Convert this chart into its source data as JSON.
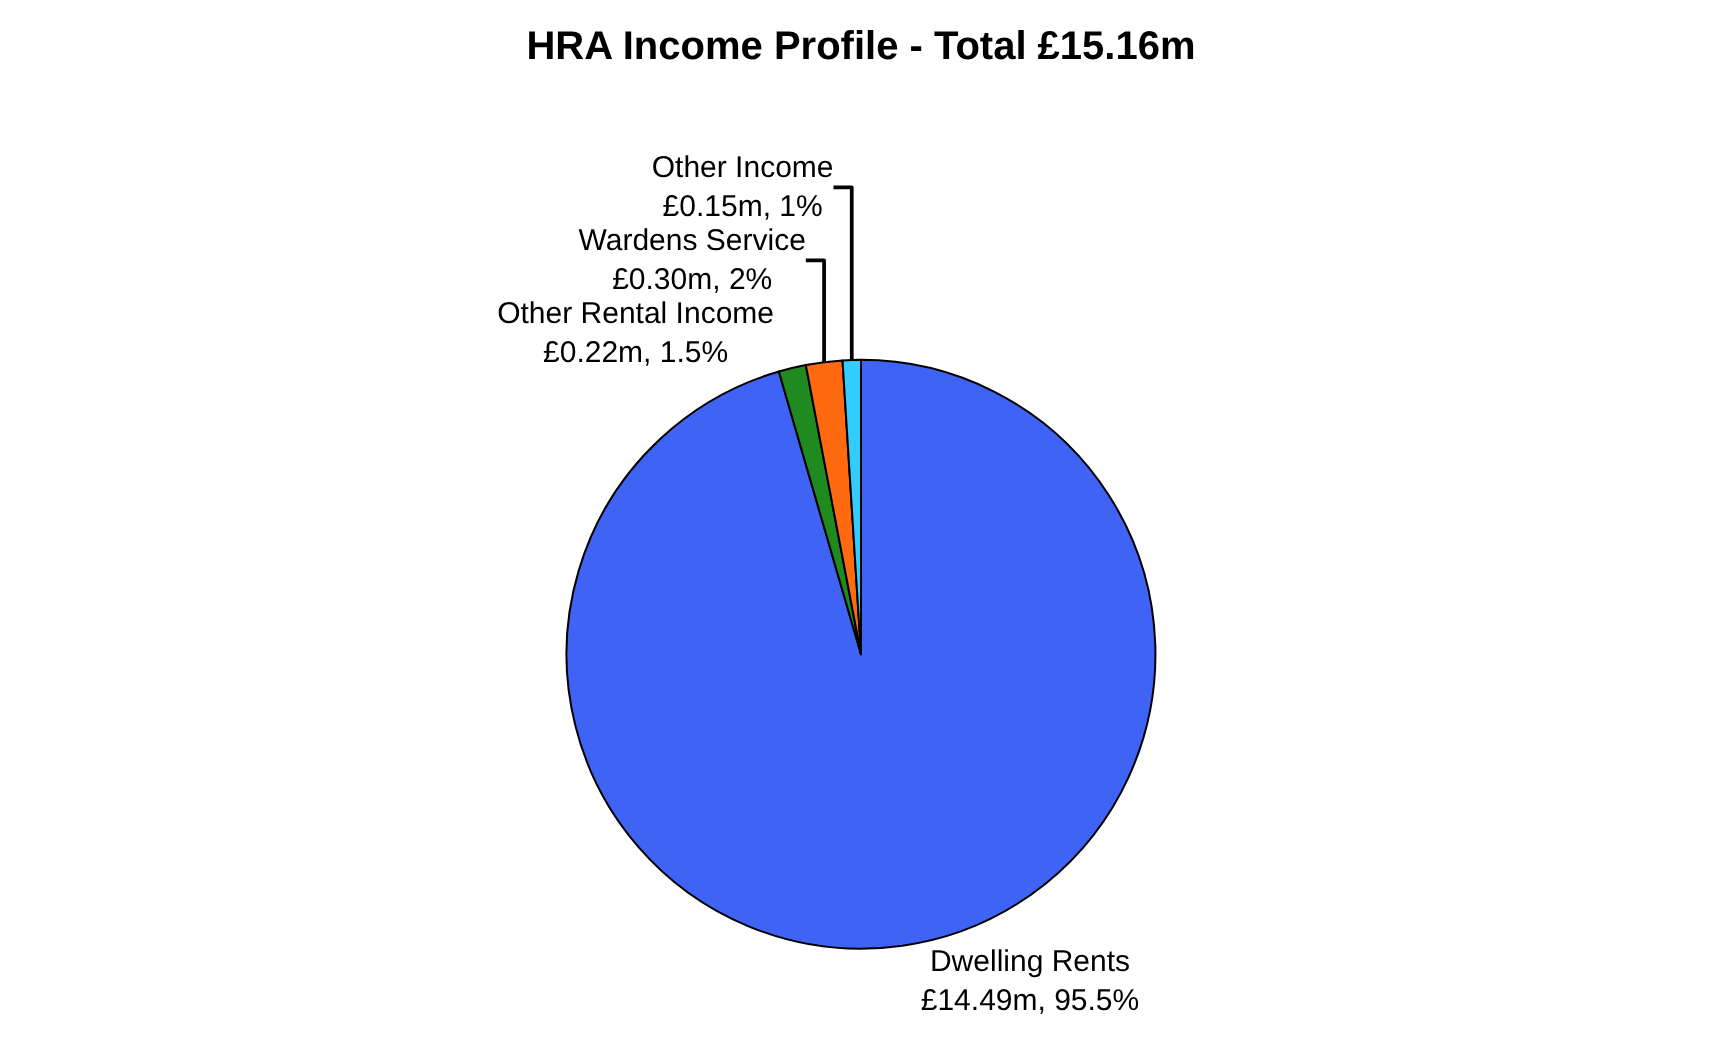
{
  "chart_data": {
    "type": "pie",
    "title": "HRA Income Profile - Total £15.16m",
    "categories": [
      "Dwelling Rents",
      "Other Rental Income",
      "Wardens Service",
      "Other Income"
    ],
    "values": [
      95.5,
      1.5,
      2,
      1
    ],
    "value_labels": [
      "£14.49m, 95.5%",
      "£0.22m, 1.5%",
      "£0.30m, 2%",
      "£0.15m, 1%"
    ],
    "colors": [
      "#3f63f5",
      "#1f8a1f",
      "#ff6a10",
      "#33ccff"
    ],
    "legend": false
  }
}
